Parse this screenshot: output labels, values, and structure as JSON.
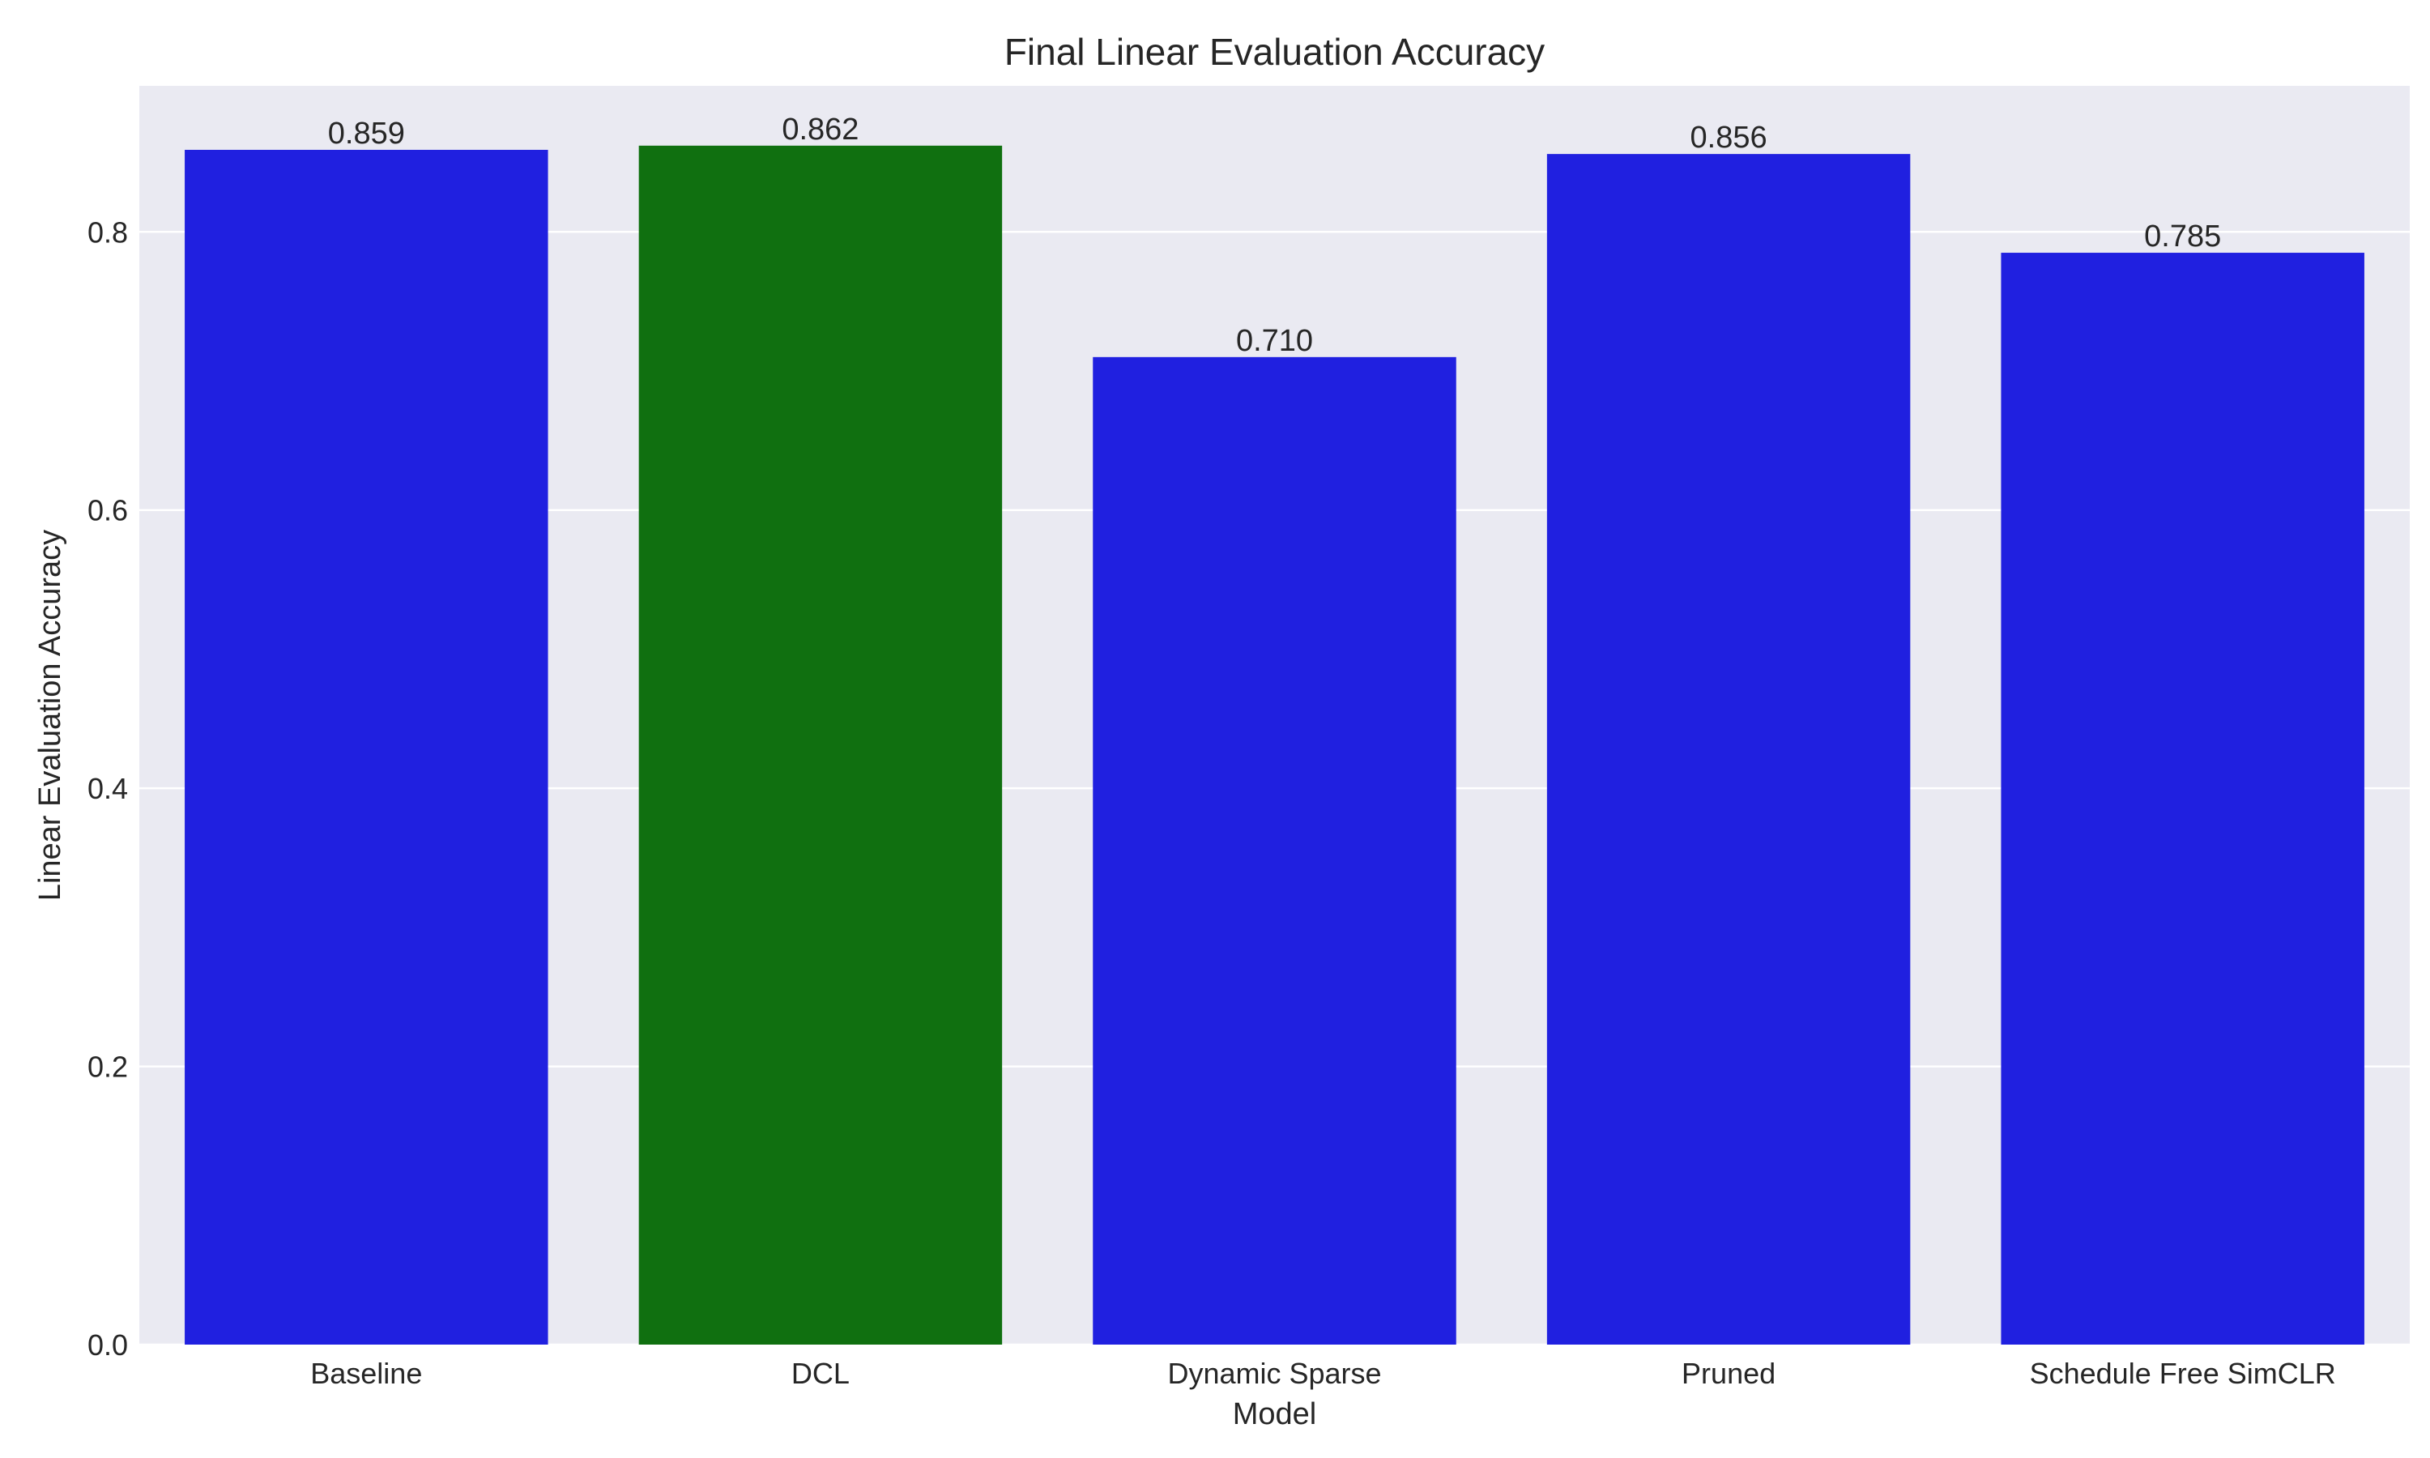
{
  "chart_data": {
    "type": "bar",
    "title": "Final Linear Evaluation Accuracy",
    "xlabel": "Model",
    "ylabel": "Linear Evaluation Accuracy",
    "categories": [
      "Baseline",
      "DCL",
      "Dynamic Sparse",
      "Pruned",
      "Schedule Free SimCLR"
    ],
    "values": [
      0.859,
      0.862,
      0.71,
      0.856,
      0.785
    ],
    "value_labels": [
      "0.859",
      "0.862",
      "0.710",
      "0.856",
      "0.785"
    ],
    "bar_colors": [
      "#2020e0",
      "#107010",
      "#2020e0",
      "#2020e0",
      "#2020e0"
    ],
    "ylim": [
      0,
      0.905
    ],
    "yticks": [
      0.0,
      0.2,
      0.4,
      0.6,
      0.8
    ],
    "ytick_labels": [
      "0.0",
      "0.2",
      "0.4",
      "0.6",
      "0.8"
    ],
    "grid": true,
    "grid_axis": "y",
    "background_color": "#eaeaf2",
    "grid_color": "#ffffff"
  }
}
